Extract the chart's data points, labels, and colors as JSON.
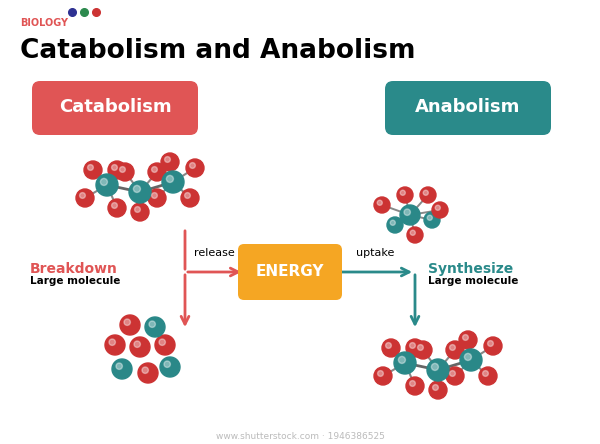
{
  "title": "Catabolism and Anabolism",
  "biology_label": "BIOLOGY",
  "biology_dots": [
    "#2e3192",
    "#2d8a4e",
    "#cc3333"
  ],
  "catabolism_label": "Catabolism",
  "catabolism_color": "#e05555",
  "anabolism_label": "Anabolism",
  "anabolism_color": "#2a8a8a",
  "energy_label": "ENERGY",
  "energy_color": "#f5a623",
  "breakdown_label": "Breakdown",
  "breakdown_sub": "Large molecule",
  "synthesize_label": "Synthesize",
  "synthesize_sub": "Large molecule",
  "release_label": "release",
  "uptake_label": "uptake",
  "bg_color": "#ffffff",
  "watermark": "www.shutterstock.com · 1946386525",
  "red_atom": "#cc3333",
  "teal_atom": "#2a8888"
}
